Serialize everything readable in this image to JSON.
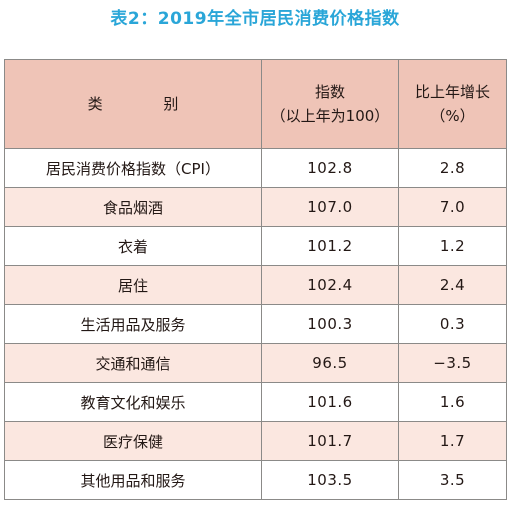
{
  "title": "表2：2019年全市居民消费价格指数",
  "table": {
    "headers": {
      "category": "类  别",
      "index_line1": "指数",
      "index_line2": "（以上年为100）",
      "growth_line1": "比上年增长",
      "growth_line2": "（%）"
    },
    "rows": [
      {
        "category": "居民消费价格指数（CPI）",
        "index": "102.8",
        "growth": "2.8"
      },
      {
        "category": "食品烟酒",
        "index": "107.0",
        "growth": "7.0"
      },
      {
        "category": "衣着",
        "index": "101.2",
        "growth": "1.2"
      },
      {
        "category": "居住",
        "index": "102.4",
        "growth": "2.4"
      },
      {
        "category": "生活用品及服务",
        "index": "100.3",
        "growth": "0.3"
      },
      {
        "category": "交通和通信",
        "index": "96.5",
        "growth": "−3.5"
      },
      {
        "category": "教育文化和娱乐",
        "index": "101.6",
        "growth": "1.6"
      },
      {
        "category": "医疗保健",
        "index": "101.7",
        "growth": "1.7"
      },
      {
        "category": "其他用品和服务",
        "index": "103.5",
        "growth": "3.5"
      }
    ]
  }
}
